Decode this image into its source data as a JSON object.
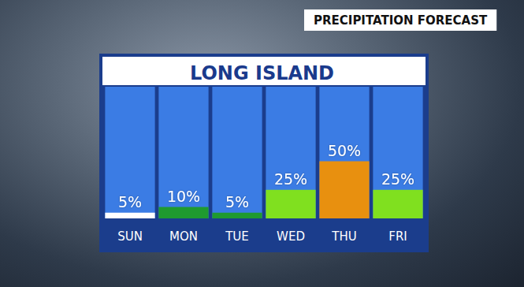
{
  "chart_data": {
    "type": "bar",
    "title": "LONG ISLAND",
    "subtitle": "PRECIPITATION FORECAST",
    "categories": [
      "SUN",
      "MON",
      "TUE",
      "WED",
      "THU",
      "FRI"
    ],
    "values": [
      5,
      10,
      5,
      25,
      50,
      25
    ],
    "value_labels": [
      "5%",
      "10%",
      "5%",
      "25%",
      "50%",
      "25%"
    ],
    "colors": [
      "#ffffff",
      "#1f9a2f",
      "#1f9a2f",
      "#80e01f",
      "#e8900f",
      "#80e01f"
    ],
    "ylim": [
      0,
      115
    ],
    "grid": false,
    "data_labels": true,
    "tick_labels": "x"
  }
}
